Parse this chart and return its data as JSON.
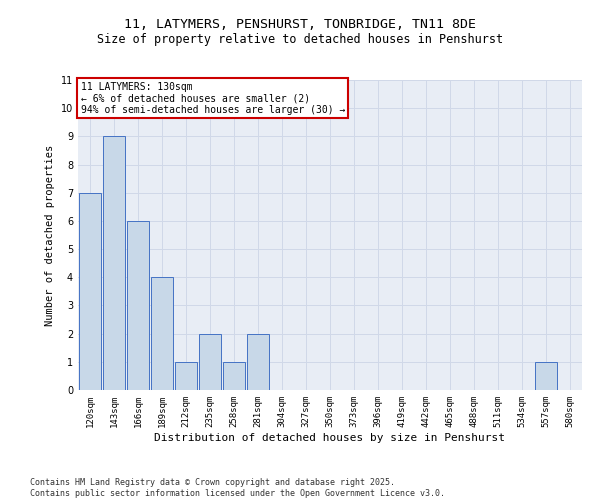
{
  "title": "11, LATYMERS, PENSHURST, TONBRIDGE, TN11 8DE",
  "subtitle": "Size of property relative to detached houses in Penshurst",
  "xlabel": "Distribution of detached houses by size in Penshurst",
  "ylabel": "Number of detached properties",
  "categories": [
    "120sqm",
    "143sqm",
    "166sqm",
    "189sqm",
    "212sqm",
    "235sqm",
    "258sqm",
    "281sqm",
    "304sqm",
    "327sqm",
    "350sqm",
    "373sqm",
    "396sqm",
    "419sqm",
    "442sqm",
    "465sqm",
    "488sqm",
    "511sqm",
    "534sqm",
    "557sqm",
    "580sqm"
  ],
  "values": [
    7,
    9,
    6,
    4,
    1,
    2,
    1,
    2,
    0,
    0,
    0,
    0,
    0,
    0,
    0,
    0,
    0,
    0,
    0,
    1,
    0
  ],
  "bar_color": "#c8d8e8",
  "bar_edge_color": "#4472c4",
  "annotation_box_text": "11 LATYMERS: 130sqm\n← 6% of detached houses are smaller (2)\n94% of semi-detached houses are larger (30) →",
  "annotation_box_color": "#ffffff",
  "annotation_box_edge_color": "#cc0000",
  "ylim": [
    0,
    11
  ],
  "yticks": [
    0,
    1,
    2,
    3,
    4,
    5,
    6,
    7,
    8,
    9,
    10,
    11
  ],
  "grid_color": "#d0d8e8",
  "background_color": "#e8edf5",
  "footer": "Contains HM Land Registry data © Crown copyright and database right 2025.\nContains public sector information licensed under the Open Government Licence v3.0.",
  "title_fontsize": 9.5,
  "subtitle_fontsize": 8.5,
  "xlabel_fontsize": 8,
  "ylabel_fontsize": 7.5,
  "tick_fontsize": 6.5,
  "annotation_fontsize": 7,
  "footer_fontsize": 6
}
